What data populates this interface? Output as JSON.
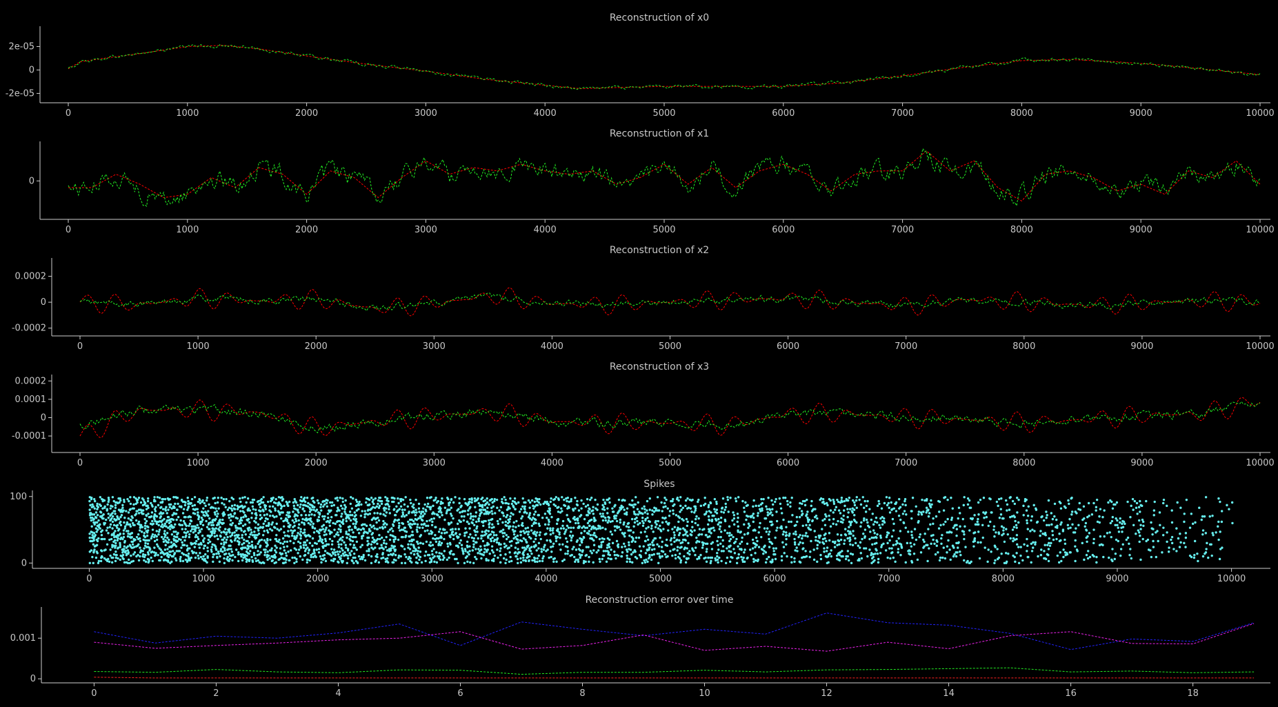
{
  "chart_data": [
    {
      "type": "line",
      "title": "Reconstruction of x0",
      "xlim": [
        0,
        10000
      ],
      "ylim": [
        -2.8e-05,
        3.5e-05
      ],
      "xticks": [
        0,
        1000,
        2000,
        3000,
        4000,
        5000,
        6000,
        7000,
        8000,
        9000,
        10000
      ],
      "xtick_labels": [
        "0",
        "1000",
        "2000",
        "3000",
        "4000",
        "5000",
        "6000",
        "7000",
        "8000",
        "9000",
        "10000"
      ],
      "yticks": [
        2e-05,
        0,
        -2e-05
      ],
      "ytick_labels": [
        "2e-05",
        "0",
        "-2e-05"
      ],
      "series": [
        {
          "color": "#ff0000",
          "dash": true,
          "x": [
            0,
            100,
            300,
            600,
            1000,
            1300,
            1600,
            2000,
            2500,
            3000,
            3500,
            4000,
            4300,
            4600,
            5000,
            5500,
            6000,
            6500,
            7000,
            7500,
            8000,
            8400,
            8800,
            9200,
            9600,
            10000
          ],
          "y": [
            1e-06,
            7e-06,
            1e-05,
            1.4e-05,
            2e-05,
            2.1e-05,
            1.8e-05,
            1.2e-05,
            5e-06,
            -1e-06,
            -8e-06,
            -1.3e-05,
            -1.6e-05,
            -1.5e-05,
            -1.4e-05,
            -1.4e-05,
            -1.4e-05,
            -1.1e-05,
            -5e-06,
            2e-06,
            8e-06,
            9e-06,
            7e-06,
            4e-06,
            0,
            -4e-06
          ]
        },
        {
          "color": "#22ee22",
          "dash": true,
          "noise": 1.2e-06,
          "x": [
            0,
            100,
            300,
            600,
            1000,
            1300,
            1600,
            2000,
            2500,
            3000,
            3500,
            4000,
            4300,
            4600,
            5000,
            5500,
            6000,
            6500,
            7000,
            7500,
            8000,
            8400,
            8800,
            9200,
            9600,
            10000
          ],
          "y": [
            1e-06,
            7e-06,
            1e-05,
            1.4e-05,
            2e-05,
            2.1e-05,
            1.8e-05,
            1.2e-05,
            5e-06,
            -1e-06,
            -8e-06,
            -1.3e-05,
            -1.6e-05,
            -1.5e-05,
            -1.4e-05,
            -1.4e-05,
            -1.4e-05,
            -1.1e-05,
            -5e-06,
            2e-06,
            8e-06,
            9e-06,
            7e-06,
            4e-06,
            0,
            -4e-06
          ]
        }
      ]
    },
    {
      "type": "line",
      "title": "Reconstruction of x1",
      "xlim": [
        0,
        10000
      ],
      "ylim": [
        -1.15,
        1.1
      ],
      "xticks": [
        0,
        1000,
        2000,
        3000,
        4000,
        5000,
        6000,
        7000,
        8000,
        9000,
        10000
      ],
      "xtick_labels": [
        "0",
        "1000",
        "2000",
        "3000",
        "4000",
        "5000",
        "6000",
        "7000",
        "8000",
        "9000",
        "10000"
      ],
      "yticks": [
        0
      ],
      "ytick_labels": [
        "0"
      ],
      "series": [
        {
          "color": "#ff0000",
          "dash": true,
          "x": [
            0,
            200,
            400,
            600,
            800,
            1000,
            1200,
            1400,
            1600,
            1800,
            2000,
            2200,
            2400,
            2600,
            2800,
            3000,
            3200,
            3400,
            3600,
            3800,
            4000,
            4200,
            4400,
            4600,
            4800,
            5000,
            5200,
            5400,
            5600,
            5800,
            6000,
            6200,
            6400,
            6600,
            6800,
            7000,
            7200,
            7400,
            7600,
            7800,
            8000,
            8200,
            8400,
            8600,
            8800,
            9000,
            9200,
            9400,
            9600,
            9800,
            10000
          ],
          "y": [
            -0.2,
            -0.2,
            0.2,
            -0.1,
            -0.5,
            -0.4,
            0.1,
            -0.2,
            0.4,
            0.2,
            -0.4,
            0.3,
            0.1,
            -0.5,
            0.1,
            0.6,
            0.2,
            0.4,
            0.3,
            0.5,
            0.3,
            0.2,
            0.3,
            -0.1,
            0.1,
            0.5,
            -0.1,
            0.4,
            -0.2,
            0.3,
            0.5,
            0.2,
            -0.3,
            0.2,
            0.3,
            0.3,
            0.9,
            0.3,
            0.6,
            -0.2,
            -0.6,
            0.2,
            0.3,
            0.1,
            -0.3,
            -0.1,
            -0.4,
            0.3,
            0.1,
            0.6,
            -0.1
          ]
        },
        {
          "color": "#22ee22",
          "dash": true,
          "noise": 0.22,
          "x": [
            0,
            200,
            400,
            600,
            800,
            1000,
            1200,
            1400,
            1600,
            1800,
            2000,
            2200,
            2400,
            2600,
            2800,
            3000,
            3200,
            3400,
            3600,
            3800,
            4000,
            4200,
            4400,
            4600,
            4800,
            5000,
            5200,
            5400,
            5600,
            5800,
            6000,
            6200,
            6400,
            6600,
            6800,
            7000,
            7200,
            7400,
            7600,
            7800,
            8000,
            8200,
            8400,
            8600,
            8800,
            9000,
            9200,
            9400,
            9600,
            9800,
            10000
          ],
          "y": [
            -0.2,
            -0.2,
            0.2,
            -0.3,
            -0.6,
            -0.4,
            0.1,
            -0.2,
            0.4,
            0.2,
            -0.4,
            0.3,
            0.1,
            -0.5,
            0.1,
            0.6,
            0.2,
            0.4,
            0.3,
            0.5,
            0.3,
            0.2,
            0.3,
            -0.1,
            0.1,
            0.4,
            -0.1,
            0.4,
            -0.2,
            0.3,
            0.5,
            0.2,
            -0.3,
            0.2,
            0.3,
            0.3,
            0.8,
            0.3,
            0.5,
            -0.2,
            -0.4,
            0.2,
            0.3,
            0.1,
            -0.3,
            -0.1,
            -0.3,
            0.3,
            0.1,
            0.5,
            -0.1
          ]
        }
      ]
    },
    {
      "type": "line",
      "title": "Reconstruction of x2",
      "xlim": [
        0,
        10000
      ],
      "ylim": [
        -0.00026,
        0.00032
      ],
      "xticks": [
        0,
        1000,
        2000,
        3000,
        4000,
        5000,
        6000,
        7000,
        8000,
        9000,
        10000
      ],
      "xtick_labels": [
        "0",
        "1000",
        "2000",
        "3000",
        "4000",
        "5000",
        "6000",
        "7000",
        "8000",
        "9000",
        "10000"
      ],
      "yticks": [
        0.0002,
        0,
        -0.0002
      ],
      "ytick_labels": [
        "0.0002",
        "0",
        "-0.0002"
      ],
      "series": [
        {
          "color": "#ff0000",
          "dash": true,
          "osc": 8e-05,
          "x": [
            0,
            500,
            1000,
            1500,
            2000,
            2500,
            3000,
            3500,
            4000,
            4500,
            5000,
            5500,
            6000,
            6500,
            7000,
            7500,
            8000,
            8500,
            9000,
            9500,
            10000
          ],
          "y": [
            0,
            -2e-05,
            3e-05,
            1e-05,
            2e-05,
            -5e-05,
            -1e-05,
            5e-05,
            -1e-05,
            -2e-05,
            0,
            2e-05,
            3e-05,
            0,
            -3e-05,
            2e-05,
            0,
            -2e-05,
            -1e-05,
            1e-05,
            0
          ]
        },
        {
          "color": "#22ee22",
          "dash": true,
          "noise": 2e-05,
          "x": [
            0,
            500,
            1000,
            1500,
            2000,
            2500,
            3000,
            3500,
            4000,
            4500,
            5000,
            5500,
            6000,
            6500,
            7000,
            7500,
            8000,
            8500,
            9000,
            9500,
            10000
          ],
          "y": [
            0,
            -2e-05,
            3e-05,
            1e-05,
            2e-05,
            -5e-05,
            -1e-05,
            5e-05,
            -1e-05,
            -2e-05,
            0,
            2e-05,
            3e-05,
            0,
            -3e-05,
            2e-05,
            0,
            -2e-05,
            -1e-05,
            1e-05,
            0
          ]
        }
      ]
    },
    {
      "type": "line",
      "title": "Reconstruction of x3",
      "xlim": [
        0,
        10000
      ],
      "ylim": [
        -0.00019,
        0.00022
      ],
      "xticks": [
        0,
        1000,
        2000,
        3000,
        4000,
        5000,
        6000,
        7000,
        8000,
        9000,
        10000
      ],
      "xtick_labels": [
        "0",
        "1000",
        "2000",
        "3000",
        "4000",
        "5000",
        "6000",
        "7000",
        "8000",
        "9000",
        "10000"
      ],
      "yticks": [
        0.0002,
        0.0001,
        0,
        -0.0001
      ],
      "ytick_labels": [
        "0.0002",
        "0.0001",
        "0",
        "-0.0001"
      ],
      "series": [
        {
          "color": "#ff0000",
          "dash": true,
          "osc": 6e-05,
          "x": [
            0,
            500,
            1000,
            1500,
            2000,
            2500,
            3000,
            3500,
            4000,
            4500,
            5000,
            5500,
            6000,
            6500,
            7000,
            7500,
            8000,
            8500,
            9000,
            9500,
            10000
          ],
          "y": [
            -0.0001,
            4e-05,
            4e-05,
            3e-05,
            -6e-05,
            -2e-05,
            1e-05,
            3e-05,
            -2e-05,
            -3e-05,
            -3e-05,
            -4e-05,
            2e-05,
            2e-05,
            0,
            -1e-05,
            -3e-05,
            -1e-05,
            1e-05,
            2e-05,
            9e-05
          ]
        },
        {
          "color": "#22ee22",
          "dash": true,
          "noise": 1.8e-05,
          "x": [
            0,
            500,
            1000,
            1500,
            2000,
            2500,
            3000,
            3500,
            4000,
            4500,
            5000,
            5500,
            6000,
            6500,
            7000,
            7500,
            8000,
            8500,
            9000,
            9500,
            10000
          ],
          "y": [
            -4e-05,
            4e-05,
            4e-05,
            3e-05,
            -6e-05,
            -2e-05,
            1e-05,
            3e-05,
            -2e-05,
            -3e-05,
            -3e-05,
            -4e-05,
            2e-05,
            2e-05,
            0,
            -1e-05,
            -3e-05,
            -1e-05,
            1e-05,
            2e-05,
            8e-05
          ]
        }
      ]
    },
    {
      "type": "scatter",
      "title": "Spikes",
      "xlim": [
        -250,
        10250
      ],
      "ylim": [
        -8,
        105
      ],
      "xticks": [
        0,
        1000,
        2000,
        3000,
        4000,
        5000,
        6000,
        7000,
        8000,
        9000,
        10000
      ],
      "xtick_labels": [
        "0",
        "1000",
        "2000",
        "3000",
        "4000",
        "5000",
        "6000",
        "7000",
        "8000",
        "9000",
        "10000"
      ],
      "yticks": [
        100,
        0
      ],
      "ytick_labels": [
        "100",
        "0"
      ],
      "point_color": "#66eeee",
      "neurons": 100,
      "density_start": 0.08,
      "density_end": 0.012
    },
    {
      "type": "line",
      "title": "Reconstruction error over time",
      "xlim": [
        -0.4,
        19.1
      ],
      "ylim": [
        -0.0001,
        0.0017
      ],
      "xticks": [
        0,
        2,
        4,
        6,
        8,
        10,
        12,
        14,
        16,
        18
      ],
      "xtick_labels": [
        "0",
        "2",
        "4",
        "6",
        "8",
        "10",
        "12",
        "14",
        "16",
        "18"
      ],
      "yticks": [
        0.001,
        0
      ],
      "ytick_labels": [
        "0.001",
        "0"
      ],
      "series": [
        {
          "color": "#2222ff",
          "dash": true,
          "x": [
            0,
            1,
            2,
            3,
            4,
            5,
            6,
            7,
            8,
            9,
            10,
            11,
            12,
            13,
            14,
            15,
            16,
            17,
            18,
            19
          ],
          "y": [
            0.00116,
            0.00088,
            0.00105,
            0.001,
            0.00113,
            0.00135,
            0.00082,
            0.0014,
            0.00122,
            0.00106,
            0.00122,
            0.0011,
            0.00162,
            0.00138,
            0.00132,
            0.00112,
            0.00072,
            0.00098,
            0.00092,
            0.00138
          ]
        },
        {
          "color": "#ee22ee",
          "dash": true,
          "x": [
            0,
            1,
            2,
            3,
            4,
            5,
            6,
            7,
            8,
            9,
            10,
            11,
            12,
            13,
            14,
            15,
            16,
            17,
            18,
            19
          ],
          "y": [
            0.0009,
            0.00075,
            0.00082,
            0.00088,
            0.00096,
            0.001,
            0.00116,
            0.00073,
            0.00082,
            0.00108,
            0.0007,
            0.0008,
            0.00068,
            0.0009,
            0.00074,
            0.00106,
            0.00116,
            0.00087,
            0.00086,
            0.00136
          ]
        },
        {
          "color": "#22ee22",
          "dash": true,
          "x": [
            0,
            1,
            2,
            3,
            4,
            5,
            6,
            7,
            8,
            9,
            10,
            11,
            12,
            13,
            14,
            15,
            16,
            17,
            18,
            19
          ],
          "y": [
            0.00018,
            0.00016,
            0.00023,
            0.00017,
            0.00015,
            0.00022,
            0.00021,
            0.00011,
            0.00016,
            0.00016,
            0.00021,
            0.00017,
            0.00022,
            0.00023,
            0.00025,
            0.00027,
            0.00017,
            0.00019,
            0.00015,
            0.00017
          ]
        },
        {
          "color": "#ff2222",
          "dash": true,
          "x": [
            0,
            1,
            2,
            3,
            4,
            5,
            6,
            7,
            8,
            9,
            10,
            11,
            12,
            13,
            14,
            15,
            16,
            17,
            18,
            19
          ],
          "y": [
            4e-05,
            2e-05,
            2e-05,
            2e-05,
            2e-05,
            2e-05,
            2e-05,
            2e-05,
            2e-05,
            2e-05,
            2e-05,
            2e-05,
            2e-05,
            2e-05,
            2e-05,
            2e-05,
            2e-05,
            2e-05,
            2e-05,
            2e-05
          ]
        }
      ]
    }
  ]
}
